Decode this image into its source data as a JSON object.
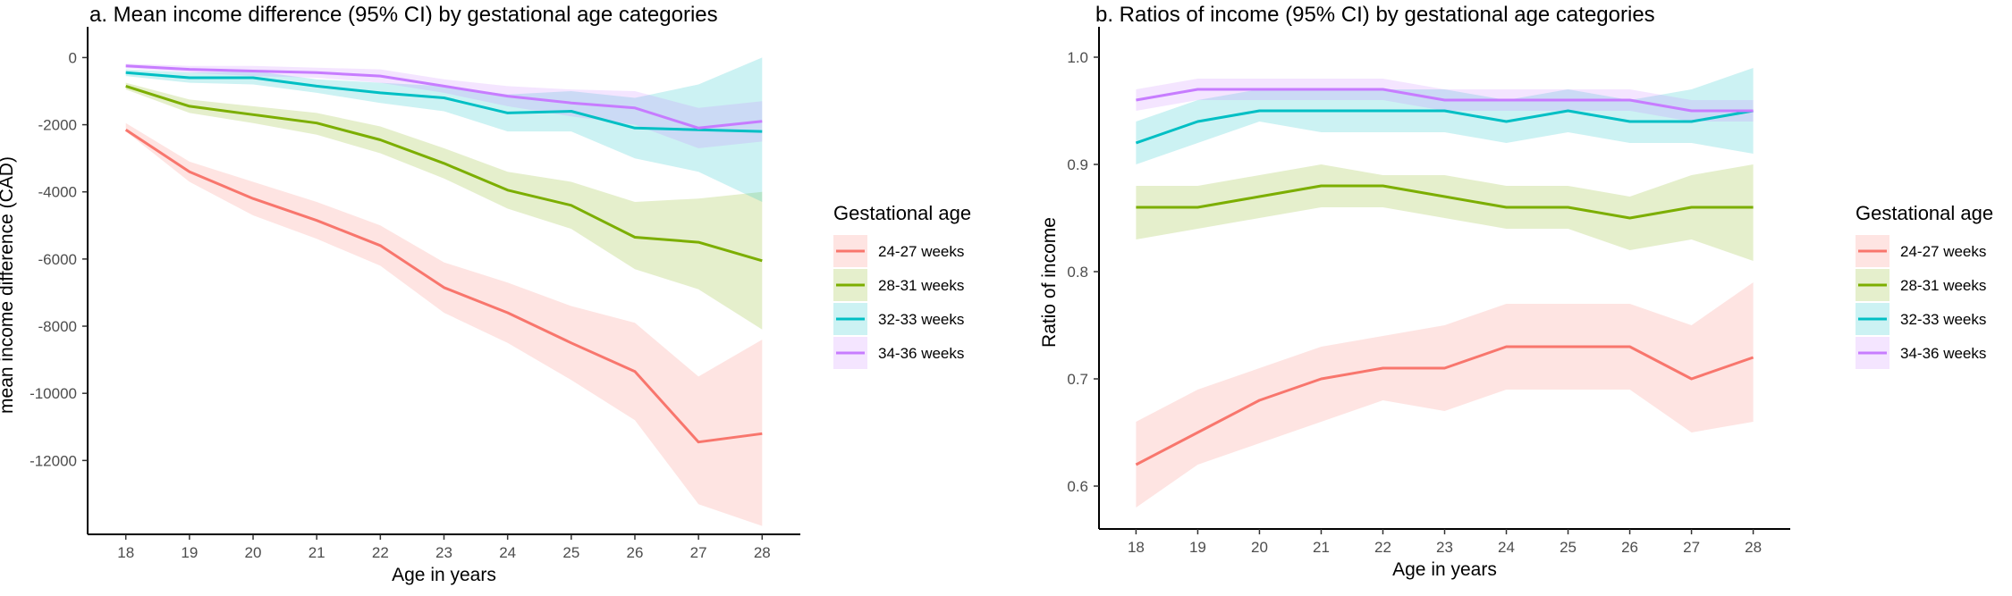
{
  "legend_title": "Gestational age",
  "chart_data": [
    {
      "type": "line",
      "title": "a. Mean income difference (95% CI) by gestational age categories",
      "xlabel": "Age in years",
      "ylabel": "mean income difference (CAD)",
      "x": [
        18,
        19,
        20,
        21,
        22,
        23,
        24,
        25,
        26,
        27,
        28
      ],
      "xlim": [
        17.4,
        28.6
      ],
      "ylim": [
        -14200,
        650
      ],
      "yticks": [
        0,
        -2000,
        -4000,
        -6000,
        -8000,
        -10000,
        -12000
      ],
      "xticks": [
        18,
        19,
        20,
        21,
        22,
        23,
        24,
        25,
        26,
        27,
        28
      ],
      "grid": false,
      "legend_position": "right",
      "series": [
        {
          "name": "24-27 weeks",
          "color": "#F8766D",
          "values": [
            -2150,
            -3400,
            -4200,
            -4850,
            -5600,
            -6850,
            -7600,
            -8500,
            -9350,
            -11450,
            -11200
          ],
          "lower": [
            -2200,
            -3700,
            -4700,
            -5400,
            -6200,
            -7600,
            -8500,
            -9600,
            -10800,
            -13300,
            -13950
          ],
          "upper": [
            -1950,
            -3100,
            -3700,
            -4300,
            -5000,
            -6100,
            -6700,
            -7400,
            -7900,
            -9500,
            -8400
          ]
        },
        {
          "name": "28-31 weeks",
          "color": "#7CAE00",
          "values": [
            -850,
            -1450,
            -1700,
            -1950,
            -2450,
            -3150,
            -3950,
            -4400,
            -5350,
            -5500,
            -6050
          ],
          "lower": [
            -950,
            -1650,
            -1950,
            -2300,
            -2850,
            -3600,
            -4500,
            -5100,
            -6300,
            -6900,
            -8100
          ],
          "upper": [
            -750,
            -1250,
            -1450,
            -1650,
            -2050,
            -2700,
            -3400,
            -3700,
            -4300,
            -4200,
            -4000
          ]
        },
        {
          "name": "32-33 weeks",
          "color": "#00BFC4",
          "values": [
            -450,
            -600,
            -600,
            -850,
            -1050,
            -1200,
            -1650,
            -1600,
            -2100,
            -2150,
            -2200
          ],
          "lower": [
            -550,
            -750,
            -800,
            -1050,
            -1350,
            -1600,
            -2200,
            -2200,
            -3000,
            -3400,
            -4300
          ],
          "upper": [
            -350,
            -450,
            -400,
            -650,
            -750,
            -850,
            -1100,
            -1000,
            -1200,
            -800,
            0
          ]
        },
        {
          "name": "34-36 weeks",
          "color": "#C77CFF",
          "values": [
            -250,
            -350,
            -400,
            -450,
            -550,
            -850,
            -1150,
            -1350,
            -1500,
            -2100,
            -1900
          ],
          "lower": [
            -320,
            -450,
            -550,
            -600,
            -750,
            -1050,
            -1450,
            -1750,
            -2000,
            -2700,
            -2500
          ],
          "upper": [
            -180,
            -250,
            -250,
            -300,
            -350,
            -650,
            -850,
            -950,
            -1000,
            -1500,
            -1300
          ]
        }
      ]
    },
    {
      "type": "line",
      "title": "b. Ratios of income (95% CI) by gestational age categories",
      "xlabel": "Age in years",
      "ylabel": "Ratio of income",
      "x": [
        18,
        19,
        20,
        21,
        22,
        23,
        24,
        25,
        26,
        27,
        28
      ],
      "xlim": [
        17.4,
        28.6
      ],
      "ylim": [
        0.56,
        1.02
      ],
      "yticks": [
        1.0,
        0.9,
        0.8,
        0.7,
        0.6
      ],
      "ytick_labels": [
        "1.0",
        "0.9",
        "0.8",
        "0.7",
        "0.6"
      ],
      "xticks": [
        18,
        19,
        20,
        21,
        22,
        23,
        24,
        25,
        26,
        27,
        28
      ],
      "grid": false,
      "legend_position": "right",
      "series": [
        {
          "name": "24-27 weeks",
          "color": "#F8766D",
          "values": [
            0.62,
            0.65,
            0.68,
            0.7,
            0.71,
            0.71,
            0.73,
            0.73,
            0.73,
            0.7,
            0.72
          ],
          "lower": [
            0.58,
            0.62,
            0.64,
            0.66,
            0.68,
            0.67,
            0.69,
            0.69,
            0.69,
            0.65,
            0.66
          ],
          "upper": [
            0.66,
            0.69,
            0.71,
            0.73,
            0.74,
            0.75,
            0.77,
            0.77,
            0.77,
            0.75,
            0.79
          ]
        },
        {
          "name": "28-31 weeks",
          "color": "#7CAE00",
          "values": [
            0.86,
            0.86,
            0.87,
            0.88,
            0.88,
            0.87,
            0.86,
            0.86,
            0.85,
            0.86,
            0.86
          ],
          "lower": [
            0.83,
            0.84,
            0.85,
            0.86,
            0.86,
            0.85,
            0.84,
            0.84,
            0.82,
            0.83,
            0.81
          ],
          "upper": [
            0.88,
            0.88,
            0.89,
            0.9,
            0.89,
            0.89,
            0.88,
            0.88,
            0.87,
            0.89,
            0.9
          ]
        },
        {
          "name": "32-33 weeks",
          "color": "#00BFC4",
          "values": [
            0.92,
            0.94,
            0.95,
            0.95,
            0.95,
            0.95,
            0.94,
            0.95,
            0.94,
            0.94,
            0.95
          ],
          "lower": [
            0.9,
            0.92,
            0.94,
            0.93,
            0.93,
            0.93,
            0.92,
            0.93,
            0.92,
            0.92,
            0.91
          ],
          "upper": [
            0.94,
            0.96,
            0.97,
            0.97,
            0.97,
            0.97,
            0.96,
            0.97,
            0.96,
            0.97,
            0.99
          ]
        },
        {
          "name": "34-36 weeks",
          "color": "#C77CFF",
          "values": [
            0.96,
            0.97,
            0.97,
            0.97,
            0.97,
            0.96,
            0.96,
            0.96,
            0.96,
            0.95,
            0.95
          ],
          "lower": [
            0.95,
            0.96,
            0.96,
            0.96,
            0.96,
            0.95,
            0.95,
            0.95,
            0.95,
            0.94,
            0.94
          ],
          "upper": [
            0.97,
            0.98,
            0.98,
            0.98,
            0.98,
            0.97,
            0.97,
            0.97,
            0.97,
            0.96,
            0.96
          ]
        }
      ]
    }
  ]
}
